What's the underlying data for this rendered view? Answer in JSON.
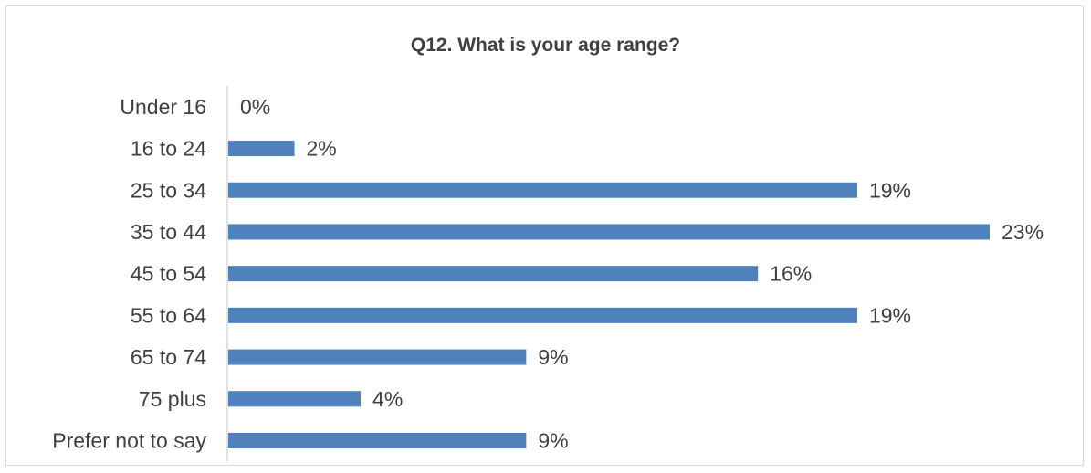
{
  "chart_data": {
    "type": "bar",
    "orientation": "horizontal",
    "title": "Q12. What is your age range?",
    "categories": [
      "Under 16",
      "16 to 24",
      "25 to 34",
      "35 to 44",
      "45 to 54",
      "55 to 64",
      "65 to 74",
      "75 plus",
      "Prefer not to say"
    ],
    "values": [
      0,
      2,
      19,
      23,
      16,
      19,
      9,
      4,
      9
    ],
    "value_labels": [
      "0%",
      "2%",
      "19%",
      "23%",
      "16%",
      "19%",
      "9%",
      "4%",
      "9%"
    ],
    "xlabel": "",
    "ylabel": "",
    "xlim": [
      0,
      23
    ],
    "grid": false,
    "legend": "none",
    "bar_color": "#4f81bd",
    "axis_color": "#d9d9d9",
    "text_color": "#404040"
  }
}
